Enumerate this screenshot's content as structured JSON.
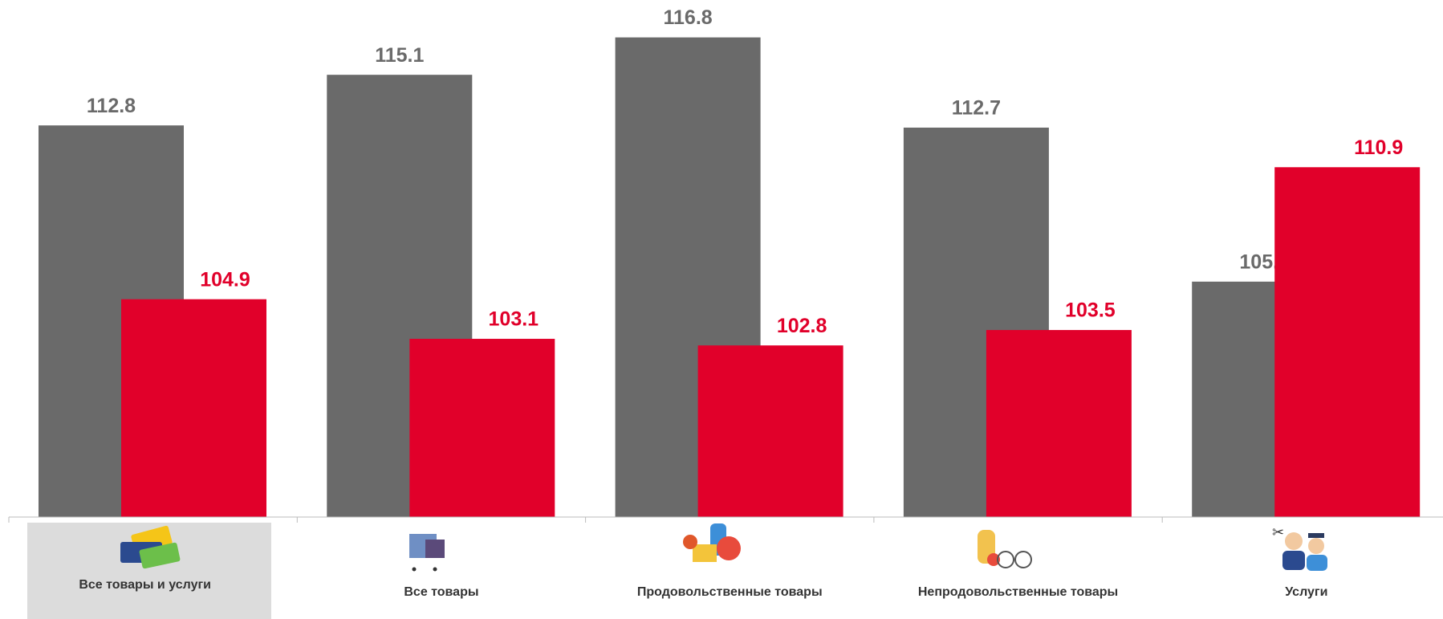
{
  "chart_data": {
    "type": "bar",
    "categories": [
      "Все товары и услуги",
      "Все товары",
      "Продовольственные товары",
      "Непродовольственные товары",
      "Услуги"
    ],
    "series": [
      {
        "color": "#6a6a6a",
        "values": [
          112.8,
          115.1,
          116.8,
          112.7,
          105.7
        ]
      },
      {
        "color": "#e1002a",
        "values": [
          104.9,
          103.1,
          102.8,
          103.5,
          110.9
        ]
      }
    ],
    "ylim": [
      95,
      118.5
    ]
  }
}
